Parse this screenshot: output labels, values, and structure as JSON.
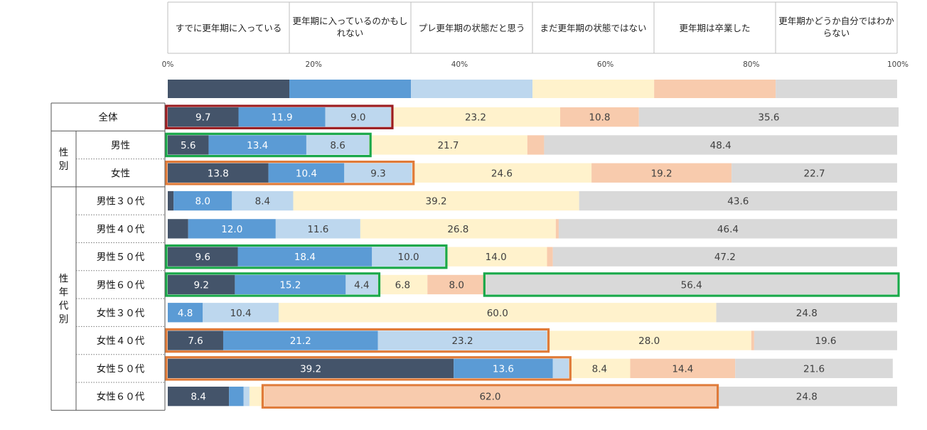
{
  "chart_data": {
    "type": "bar",
    "orientation": "horizontal",
    "stacked": true,
    "x_ticks": [
      "0%",
      "20%",
      "40%",
      "60%",
      "80%",
      "100%"
    ],
    "xlim": [
      0,
      100
    ],
    "colors": {
      "s0": "#44546a",
      "s1": "#5b9bd5",
      "s2": "#bdd7ee",
      "s3": "#fff2cc",
      "s4": "#f8cbad",
      "s5": "#d9d9d9"
    },
    "series": [
      {
        "name": "すでに更年期に入っている",
        "key": "s0"
      },
      {
        "name": "更年期に入っているのかもしれない",
        "key": "s1"
      },
      {
        "name": "プレ更年期の状態だと思う",
        "key": "s2"
      },
      {
        "name": "まだ更年期の状態ではない",
        "key": "s3"
      },
      {
        "name": "更年期は卒業した",
        "key": "s4"
      },
      {
        "name": "更年期かどうか自分ではわからない",
        "key": "s5"
      }
    ],
    "legend_bar_values": [
      16.67,
      16.67,
      16.67,
      16.67,
      16.67,
      16.65
    ],
    "groups": [
      {
        "label": "",
        "rows": [
          0
        ]
      },
      {
        "label": "性別",
        "rows": [
          1,
          2
        ]
      },
      {
        "label": "性年代別",
        "rows": [
          3,
          4,
          5,
          6,
          7,
          8,
          9,
          10
        ]
      }
    ],
    "rows": [
      {
        "label": "全体",
        "values": [
          9.7,
          11.9,
          9.0,
          23.2,
          10.8,
          35.6
        ],
        "show": [
          true,
          true,
          true,
          true,
          true,
          true
        ]
      },
      {
        "label": "男性",
        "values": [
          5.6,
          13.4,
          8.6,
          21.7,
          2.3,
          48.4
        ],
        "show": [
          true,
          true,
          true,
          true,
          false,
          true
        ]
      },
      {
        "label": "女性",
        "values": [
          13.8,
          10.4,
          9.3,
          24.6,
          19.2,
          22.7
        ],
        "show": [
          true,
          true,
          true,
          true,
          true,
          true
        ]
      },
      {
        "label": "男性３０代",
        "values": [
          0.8,
          8.0,
          8.4,
          39.2,
          0.0,
          43.6
        ],
        "show": [
          false,
          true,
          true,
          true,
          false,
          true
        ]
      },
      {
        "label": "男性４０代",
        "values": [
          2.8,
          12.0,
          11.6,
          26.8,
          0.4,
          46.4
        ],
        "show": [
          false,
          true,
          true,
          true,
          false,
          true
        ]
      },
      {
        "label": "男性５０代",
        "values": [
          9.6,
          18.4,
          10.0,
          14.0,
          0.8,
          47.2
        ],
        "show": [
          true,
          true,
          true,
          true,
          false,
          true
        ]
      },
      {
        "label": "男性６０代",
        "values": [
          9.2,
          15.2,
          4.4,
          6.8,
          8.0,
          56.4
        ],
        "show": [
          true,
          true,
          true,
          true,
          true,
          true
        ]
      },
      {
        "label": "女性３０代",
        "values": [
          0.0,
          4.8,
          10.4,
          60.0,
          0.0,
          24.8
        ],
        "show": [
          false,
          true,
          true,
          true,
          false,
          true
        ]
      },
      {
        "label": "女性４０代",
        "values": [
          7.6,
          21.2,
          23.2,
          28.0,
          0.4,
          19.6
        ],
        "show": [
          true,
          true,
          true,
          true,
          false,
          true
        ]
      },
      {
        "label": "女性５０代",
        "values": [
          39.2,
          13.6,
          2.2,
          8.4,
          14.4,
          21.6
        ],
        "show": [
          true,
          true,
          false,
          true,
          true,
          true
        ]
      },
      {
        "label": "女性６０代",
        "values": [
          8.4,
          2.0,
          0.8,
          2.0,
          62.0,
          24.8
        ],
        "show": [
          true,
          false,
          false,
          false,
          true,
          true
        ]
      }
    ],
    "highlights": [
      {
        "row": 0,
        "from": 0,
        "to": 2,
        "color": "#9b1c20"
      },
      {
        "row": 1,
        "from": 0,
        "to": 2,
        "color": "#1aa84a"
      },
      {
        "row": 2,
        "from": 0,
        "to": 2,
        "color": "#e07b39"
      },
      {
        "row": 5,
        "from": 0,
        "to": 2,
        "color": "#1aa84a"
      },
      {
        "row": 6,
        "from": 0,
        "to": 2,
        "color": "#1aa84a"
      },
      {
        "row": 6,
        "from": 5,
        "to": 5,
        "color": "#1aa84a"
      },
      {
        "row": 8,
        "from": 0,
        "to": 2,
        "color": "#e07b39"
      },
      {
        "row": 9,
        "from": 0,
        "to": 2,
        "color": "#e07b39"
      },
      {
        "row": 10,
        "from": 4,
        "to": 4,
        "color": "#e07b39"
      }
    ]
  }
}
